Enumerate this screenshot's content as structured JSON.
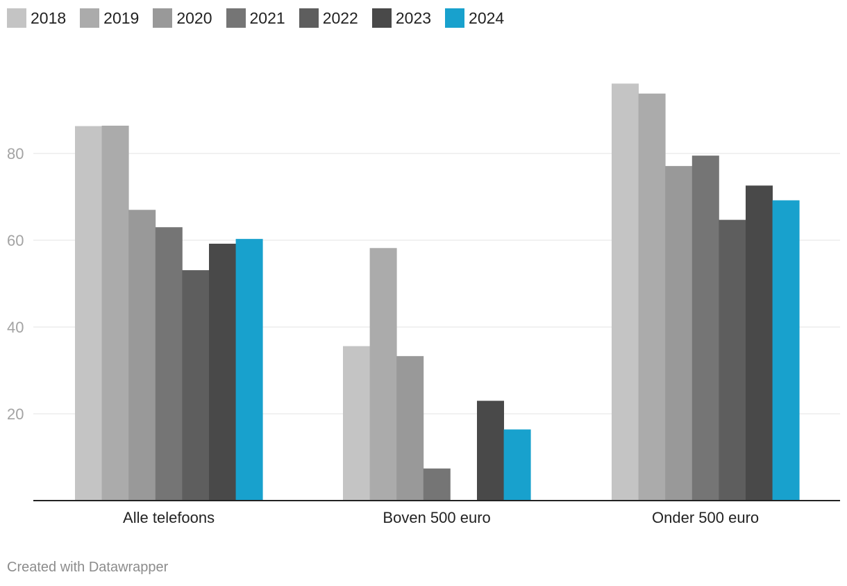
{
  "chart_data": {
    "type": "bar",
    "categories": [
      "Alle telefoons",
      "Boven 500 euro",
      "Onder 500 euro"
    ],
    "series": [
      {
        "name": "2018",
        "color": "#c4c4c4",
        "values": [
          86.3,
          35.6,
          96.1
        ]
      },
      {
        "name": "2019",
        "color": "#ababab",
        "values": [
          86.4,
          58.2,
          93.8
        ]
      },
      {
        "name": "2020",
        "color": "#999999",
        "values": [
          67.0,
          33.3,
          77.1
        ]
      },
      {
        "name": "2021",
        "color": "#757575",
        "values": [
          63.0,
          7.4,
          79.5
        ]
      },
      {
        "name": "2022",
        "color": "#5e5e5e",
        "values": [
          53.1,
          null,
          64.7
        ]
      },
      {
        "name": "2023",
        "color": "#494949",
        "values": [
          59.2,
          23.0,
          72.6
        ]
      },
      {
        "name": "2024",
        "color": "#18a1cd",
        "values": [
          60.3,
          16.4,
          69.2
        ]
      }
    ],
    "y_ticks": [
      20,
      40,
      60,
      80
    ],
    "ylim": [
      0,
      100
    ],
    "grid": true,
    "legend_position": "top-left",
    "title": "",
    "xlabel": "",
    "ylabel": ""
  },
  "footer": {
    "credit": "Created with Datawrapper"
  }
}
